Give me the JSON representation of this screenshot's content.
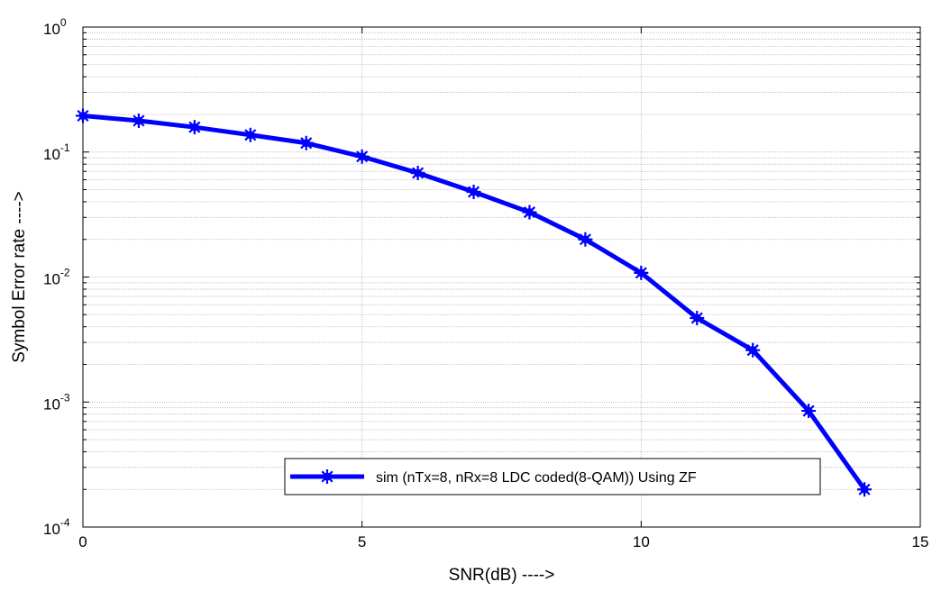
{
  "chart_data": {
    "type": "line",
    "title": "",
    "xlabel": "SNR(dB) ---->",
    "ylabel": "Symbol Error rate ---->",
    "x_scale": "linear",
    "y_scale": "log",
    "xlim": [
      0,
      15
    ],
    "ylim": [
      0.0001,
      1
    ],
    "x_ticks": [
      0,
      5,
      10,
      15
    ],
    "x_tick_labels": [
      "0",
      "5",
      "10",
      "15"
    ],
    "y_ticks": [
      0.0001,
      0.001,
      0.01,
      0.1,
      1
    ],
    "y_tick_labels": [
      {
        "base": "10",
        "exp": "-4"
      },
      {
        "base": "10",
        "exp": "-3"
      },
      {
        "base": "10",
        "exp": "-2"
      },
      {
        "base": "10",
        "exp": "-1"
      },
      {
        "base": "10",
        "exp": "0"
      }
    ],
    "grid": true,
    "legend_position": "bottom-right",
    "series": [
      {
        "name": "sim (nTx=8, nRx=8 LDC coded(8-QAM)) Using ZF",
        "color": "#0000ff",
        "marker": "asterisk",
        "x": [
          0,
          1,
          2,
          3,
          4,
          5,
          6,
          7,
          8,
          9,
          10,
          11,
          12,
          13,
          14
        ],
        "y": [
          0.195,
          0.178,
          0.158,
          0.137,
          0.118,
          0.092,
          0.068,
          0.048,
          0.033,
          0.02,
          0.0108,
          0.0047,
          0.0026,
          0.00085,
          0.0002
        ]
      }
    ]
  }
}
